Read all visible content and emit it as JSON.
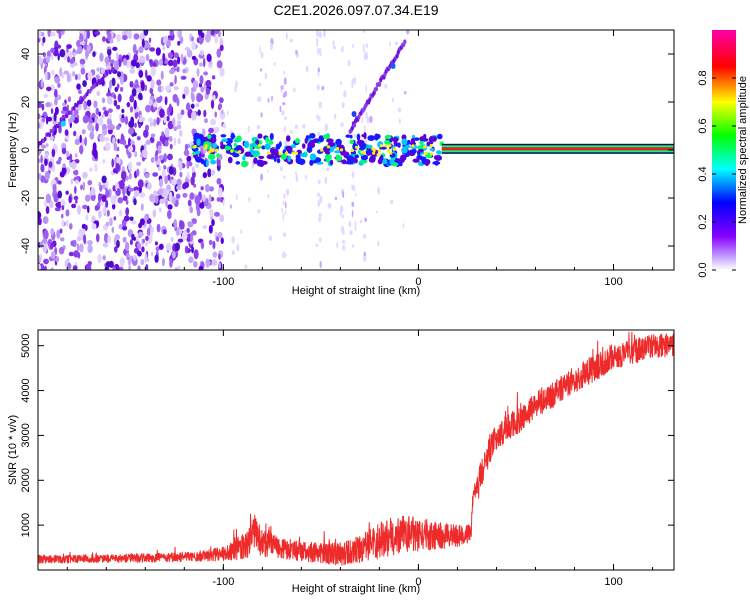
{
  "title": "C2E1.2026.097.07.34.E19",
  "colors": {
    "snr_line": "#ee2b2b",
    "carrier": "#ee1c1c",
    "axis": "#000000"
  },
  "chart_data": [
    {
      "type": "heatmap",
      "name": "spectrogram",
      "xlabel": "Height of straight line (km)",
      "ylabel": "Frequency (Hz)",
      "xlim": [
        -195,
        131
      ],
      "ylim": [
        -50,
        50
      ],
      "xticks": [
        -100,
        0,
        100
      ],
      "xtick_labels": [
        "-100",
        "0",
        "100"
      ],
      "yticks": [
        -40,
        -20,
        0,
        20,
        40
      ],
      "ytick_labels": [
        "-40",
        "-20",
        "0",
        "20",
        "40"
      ],
      "features": {
        "carrier_line": {
          "frequency_hz": 0.5,
          "x_range": [
            12,
            131
          ],
          "amplitude": 1.0
        },
        "carrier_smear": {
          "x_range": [
            -115,
            12
          ],
          "frequency_hz": 0
        },
        "noise_region": {
          "x_range": [
            -195,
            -100
          ]
        },
        "sparse_noise_region": {
          "x_range": [
            -100,
            -5
          ]
        },
        "diagonal_trace_left": {
          "start": [
            -195,
            2
          ],
          "end": [
            -158,
            33
          ]
        },
        "diagonal_trace_right": {
          "start": [
            -35,
            8
          ],
          "end": [
            -7,
            45
          ]
        }
      },
      "colorbar": {
        "label": "Normalized spectral amplitude",
        "range": [
          0,
          1
        ],
        "ticks": [
          0.0,
          0.2,
          0.4,
          0.6,
          0.8
        ],
        "tick_labels": [
          "0.0",
          "0.2",
          "0.4",
          "0.6",
          "0.8"
        ],
        "colormap": [
          "#ffffff",
          "#8800ff",
          "#0000ff",
          "#00ffff",
          "#00ff00",
          "#ffff00",
          "#ff0000",
          "#ff00aa"
        ]
      }
    },
    {
      "type": "line",
      "name": "snr",
      "xlabel": "Height of straight line (km)",
      "ylabel": "SNR (10 * v/v)",
      "xlim": [
        -195,
        131
      ],
      "ylim": [
        0,
        5350
      ],
      "xticks": [
        -100,
        0,
        100
      ],
      "xtick_labels": [
        "-100",
        "0",
        "100"
      ],
      "yticks": [
        1000,
        2000,
        3000,
        4000,
        5000
      ],
      "ytick_labels": [
        "1000",
        "2000",
        "3000",
        "4000",
        "5000"
      ],
      "series": [
        {
          "name": "SNR",
          "x": [
            -195,
            -170,
            -140,
            -115,
            -105,
            -95,
            -88,
            -84,
            -80,
            -70,
            -60,
            -50,
            -40,
            -30,
            -20,
            -10,
            0,
            10,
            20,
            27,
            28,
            31,
            34,
            37,
            40,
            50,
            60,
            70,
            80,
            90,
            100,
            110,
            120,
            131
          ],
          "y": [
            240,
            250,
            270,
            300,
            340,
            420,
            600,
            800,
            600,
            480,
            420,
            380,
            350,
            470,
            650,
            800,
            800,
            760,
            760,
            820,
            1650,
            1900,
            2400,
            2700,
            3000,
            3300,
            3650,
            3950,
            4250,
            4500,
            4750,
            4850,
            5000,
            5000
          ],
          "noise_amplitude": [
            90,
            90,
            100,
            110,
            140,
            200,
            350,
            450,
            300,
            220,
            220,
            230,
            260,
            300,
            400,
            450,
            400,
            300,
            250,
            200,
            200,
            300,
            300,
            300,
            300,
            300,
            300,
            300,
            300,
            300,
            300,
            300,
            280,
            260
          ]
        }
      ]
    }
  ]
}
